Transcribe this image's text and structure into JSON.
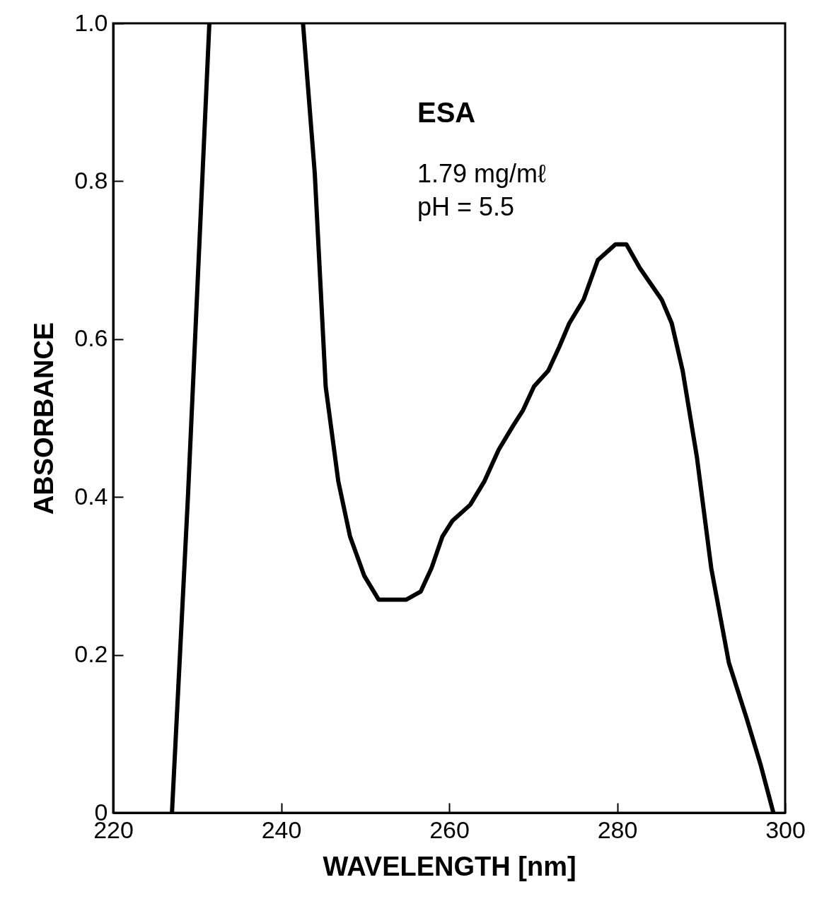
{
  "chart_data": {
    "type": "line",
    "xlabel": "WAVELENGTH [nm]",
    "ylabel": "ABSORBANCE",
    "annotations": [
      "ESA",
      "1.79 mg/mℓ",
      "pH = 5.5"
    ],
    "series": [
      {
        "color": "#000000",
        "x": [
          227.0,
          228.9,
          231.45,
          237,
          242.6,
          244.0,
          245.3,
          246.8,
          248.2,
          249.9,
          251.6,
          253.2,
          254.9,
          256.6,
          257.9,
          259.2,
          260.4,
          262.5,
          264.2,
          265.9,
          267.6,
          268.8,
          270.1,
          271.8,
          273.1,
          274.3,
          276.0,
          277.7,
          279.8,
          281.1,
          282.7,
          285.3,
          286.5,
          287.8,
          289.5,
          291.2,
          293.3,
          295.4,
          297.1,
          298.6
        ],
        "values": [
          0,
          0.4,
          1.0,
          null,
          1.0,
          0.81,
          0.54,
          0.42,
          0.35,
          0.3,
          0.27,
          0.27,
          0.27,
          0.28,
          0.31,
          0.35,
          0.37,
          0.39,
          0.42,
          0.46,
          0.49,
          0.51,
          0.54,
          0.56,
          0.59,
          0.62,
          0.65,
          0.7,
          0.72,
          0.72,
          0.69,
          0.65,
          0.62,
          0.56,
          0.45,
          0.31,
          0.19,
          0.12,
          0.06,
          0
        ]
      }
    ],
    "xlim": [
      220,
      300
    ],
    "xticks": [
      220,
      240,
      260,
      280,
      300
    ],
    "ylim": [
      0,
      1
    ],
    "yticks": [
      0,
      {
        "value": 0.2,
        "label": "0.2"
      },
      {
        "value": 0.4,
        "label": "0.4"
      },
      {
        "value": 0.6,
        "label": "0.6"
      },
      {
        "value": 0.8,
        "label": "0.8"
      },
      {
        "value": 1,
        "label": "1.0"
      }
    ],
    "grid": false,
    "marker": "none",
    "line_style": "solid"
  }
}
